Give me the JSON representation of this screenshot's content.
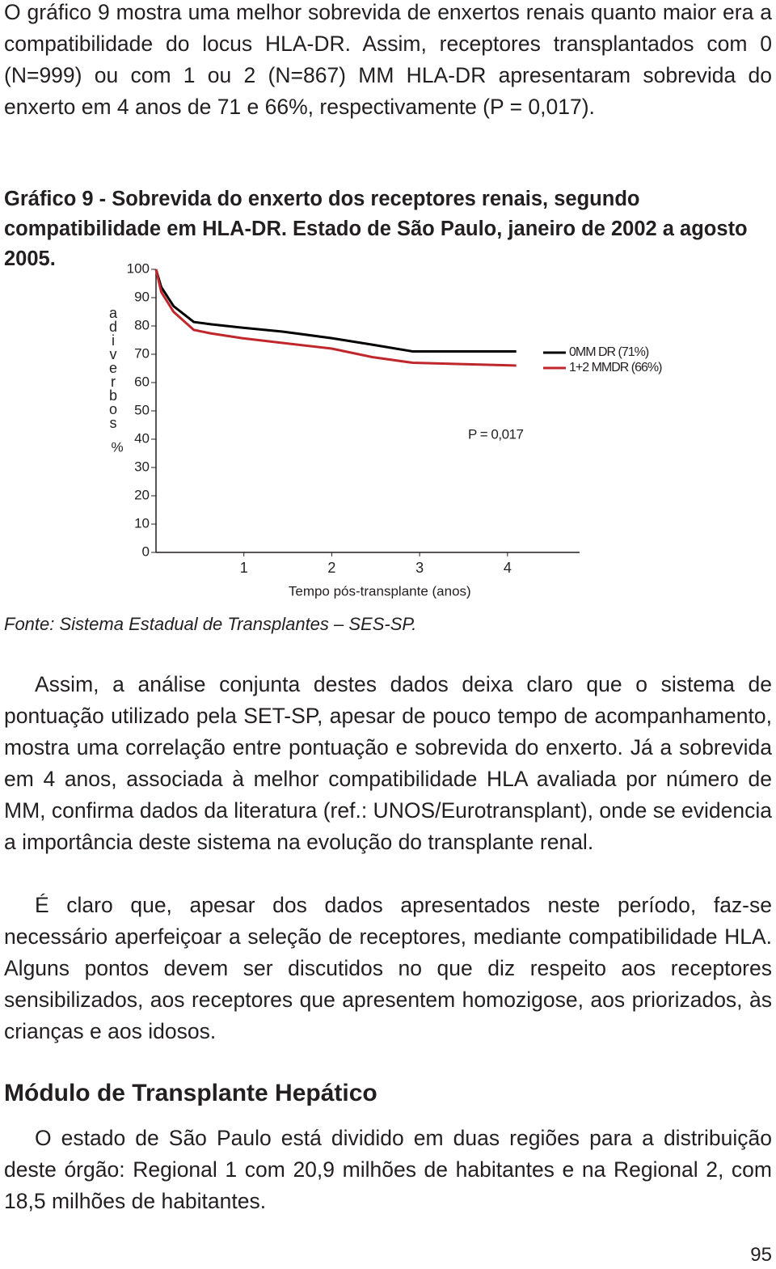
{
  "paragraph_1": "O gráfico 9 mostra uma melhor sobrevida de enxertos renais quanto maior era a compatibilidade do locus HLA-DR. Assim, receptores transplantados com 0 (N=999) ou com 1 ou 2 (N=867) MM HLA-DR apresentaram sobrevida do enxerto em 4 anos de 71 e 66%, respectivamente (P = 0,017).",
  "caption": "Gráfico 9 - Sobrevida do enxerto dos receptores renais, segundo compatibilidade em HLA-DR. Estado de São Paulo, janeiro de 2002 a agosto 2005.",
  "chart_data": {
    "type": "line",
    "xlabel": "Tempo pós-transplante (anos)",
    "ylabel": "adiverbos",
    "ylabel_unit": "%",
    "annotation": "P = 0,017",
    "legend": "right",
    "xlim": [
      0,
      4.82
    ],
    "xticks": [
      1,
      2,
      3,
      4
    ],
    "ylim": [
      0,
      100
    ],
    "yticks": [
      0,
      10,
      20,
      30,
      40,
      50,
      60,
      70,
      80,
      90,
      100
    ],
    "series": [
      {
        "name": "0MM DR (71%)",
        "color": "#000000",
        "x": [
          0,
          0.06,
          0.2,
          0.43,
          0.62,
          0.98,
          1.44,
          2.0,
          2.46,
          2.92,
          3.5,
          4.1
        ],
        "values": [
          100,
          93.7,
          87,
          81.4,
          80.6,
          79.4,
          78,
          75.7,
          73.4,
          71,
          71,
          71
        ]
      },
      {
        "name": "1+2 MMDR (66%)",
        "color": "#c0272d",
        "x": [
          0,
          0.06,
          0.2,
          0.43,
          0.62,
          0.98,
          1.44,
          2.0,
          2.46,
          2.92,
          3.38,
          4.1
        ],
        "values": [
          100,
          92,
          85,
          78.6,
          77.4,
          75.7,
          74,
          72,
          69,
          67,
          66.6,
          66
        ]
      }
    ]
  },
  "source": "Fonte: Sistema Estadual de Transplantes – SES-SP.",
  "paragraph_2": "Assim, a análise conjunta destes dados deixa claro que o sistema de pontuação utilizado pela SET-SP, apesar de pouco tempo de acompanhamento, mostra uma correlação entre pontuação e sobrevida do enxerto. Já a sobrevida em 4 anos, associada à melhor compatibilidade HLA avaliada por número de MM, confirma dados da literatura (ref.: UNOS/Eurotransplant), onde se evidencia a importância deste sistema na evolução do transplante renal.",
  "paragraph_3": "É claro que, apesar dos dados apresentados neste período, faz-se necessário aperfeiçoar a seleção de receptores, mediante compatibilidade HLA. Alguns pontos devem ser discutidos no que diz respeito aos receptores sensibilizados, aos receptores que apresentem homozigose, aos priorizados, às crianças e aos idosos.",
  "heading": "Módulo de Transplante Hepático",
  "paragraph_4": "O estado de São Paulo está dividido em duas regiões para a distribuição deste órgão: Regional 1 com 20,9 milhões de habitantes e na Regional 2, com 18,5 milhões de habitantes.",
  "page_number": "95"
}
